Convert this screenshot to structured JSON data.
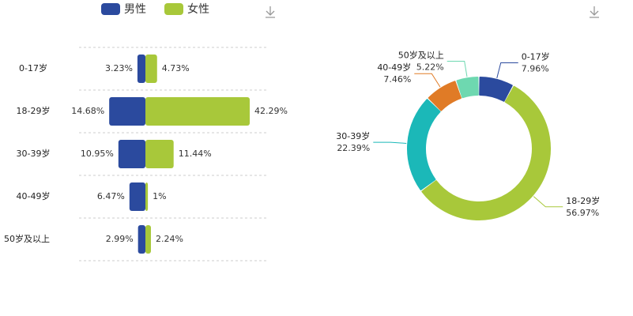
{
  "chart_data": [
    {
      "type": "butterfly",
      "categories": [
        "0-17岁",
        "18-29岁",
        "30-39岁",
        "40-49岁",
        "50岁及以上"
      ],
      "series": [
        {
          "name": "男性",
          "color": "#2b4a9e",
          "values": [
            3.23,
            14.68,
            10.95,
            6.47,
            2.99
          ],
          "value_labels": [
            "3.23%",
            "14.68%",
            "10.95%",
            "6.47%",
            "2.99%"
          ]
        },
        {
          "name": "女性",
          "color": "#a8c83a",
          "values": [
            4.73,
            42.29,
            11.44,
            1,
            2.24
          ],
          "value_labels": [
            "4.73%",
            "42.29%",
            "11.44%",
            "1%",
            "2.24%"
          ]
        }
      ]
    },
    {
      "type": "donut",
      "categories": [
        "0-17岁",
        "18-29岁",
        "30-39岁",
        "40-49岁",
        "50岁及以上"
      ],
      "values": [
        7.96,
        56.97,
        22.39,
        7.46,
        5.22
      ],
      "value_labels": [
        "7.96%",
        "56.97%",
        "22.39%",
        "7.46%",
        "5.22%"
      ],
      "colors": [
        "#2b4a9e",
        "#a8c83a",
        "#1bb8b8",
        "#e07b26",
        "#6ed8b0"
      ]
    }
  ]
}
